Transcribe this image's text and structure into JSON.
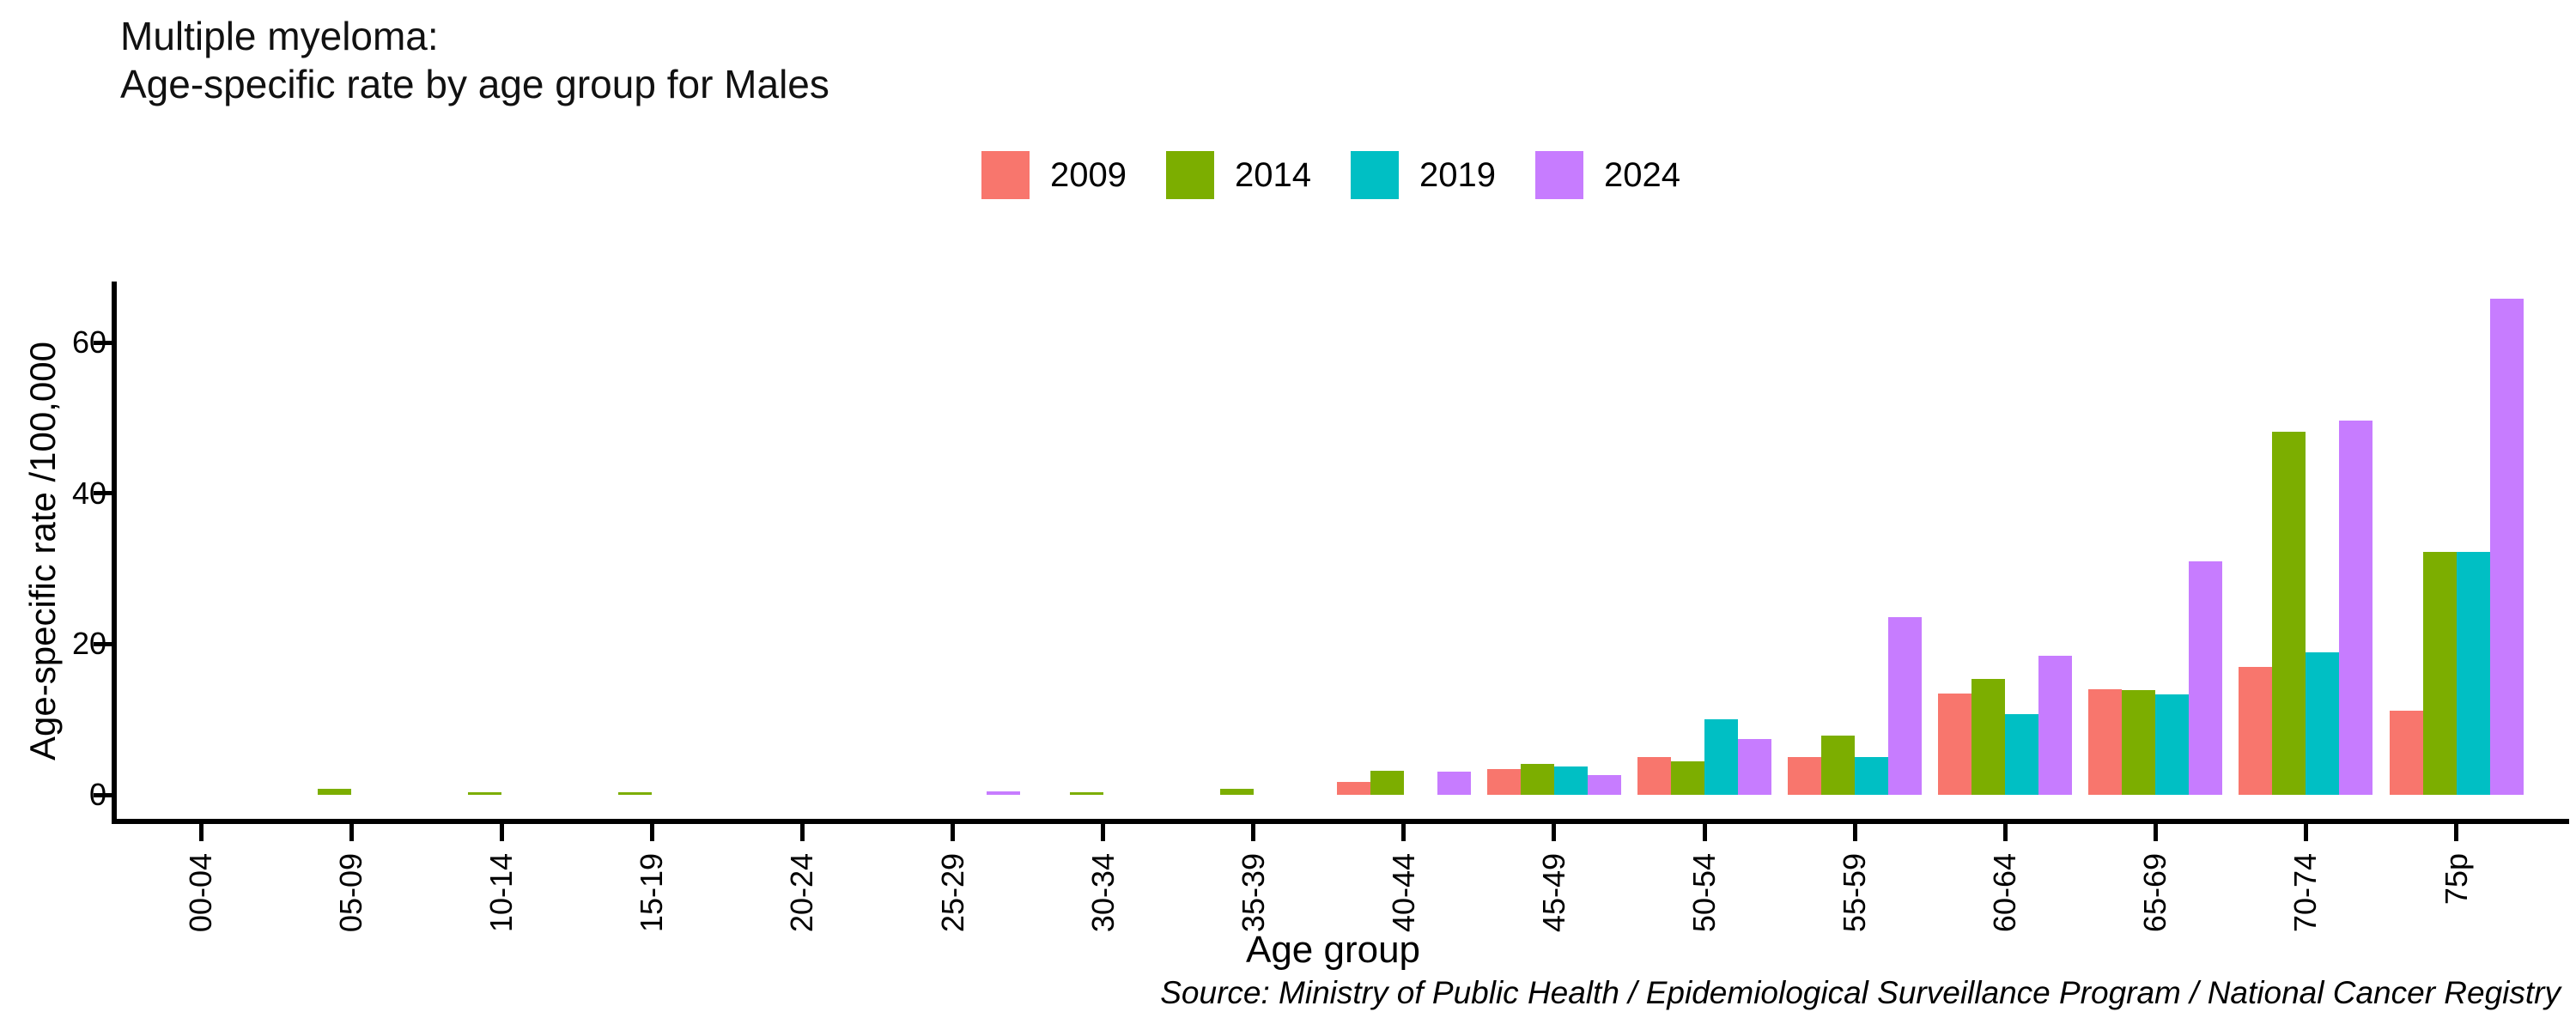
{
  "title": {
    "line1": "Multiple myeloma:",
    "line2": "Age-specific rate by age group for Males"
  },
  "caption": "Source: Ministry of Public Health / Epidemiological Surveillance Program / National Cancer Registry",
  "chart_data": {
    "type": "bar",
    "title": "Multiple myeloma: Age-specific rate by age group for Males",
    "xlabel": "Age group",
    "ylabel": "Age-specific rate /100,000",
    "categories": [
      "00-04",
      "05-09",
      "10-14",
      "15-19",
      "20-24",
      "25-29",
      "30-34",
      "35-39",
      "40-44",
      "45-49",
      "50-54",
      "55-59",
      "60-64",
      "65-69",
      "70-74",
      "75p"
    ],
    "series": [
      {
        "name": "2009",
        "color": "#F8766D",
        "values": [
          0,
          0,
          0,
          0,
          0,
          0,
          0,
          0,
          1.7,
          3.4,
          5.0,
          5.0,
          13.4,
          14.0,
          17.0,
          11.2
        ]
      },
      {
        "name": "2014",
        "color": "#7CAE00",
        "values": [
          0,
          0.8,
          0.4,
          0.4,
          0,
          0,
          0.4,
          0.8,
          3.2,
          4.1,
          4.5,
          7.9,
          15.4,
          13.9,
          48.2,
          32.2
        ]
      },
      {
        "name": "2019",
        "color": "#00BFC4",
        "values": [
          0,
          0,
          0,
          0,
          0,
          0,
          0,
          0,
          0,
          3.8,
          10.0,
          5.0,
          10.7,
          13.3,
          18.9,
          32.2
        ]
      },
      {
        "name": "2024",
        "color": "#C77CFF",
        "values": [
          0,
          0,
          0,
          0,
          0,
          0.5,
          0,
          0,
          3.1,
          2.6,
          7.4,
          23.6,
          18.5,
          31.0,
          49.7,
          65.8
        ]
      }
    ],
    "yticks": [
      0,
      20,
      40,
      60
    ],
    "ylim": [
      0,
      68.9
    ],
    "legend_position": "top-center",
    "grid": false,
    "bar_orientation": "vertical-grouped"
  }
}
